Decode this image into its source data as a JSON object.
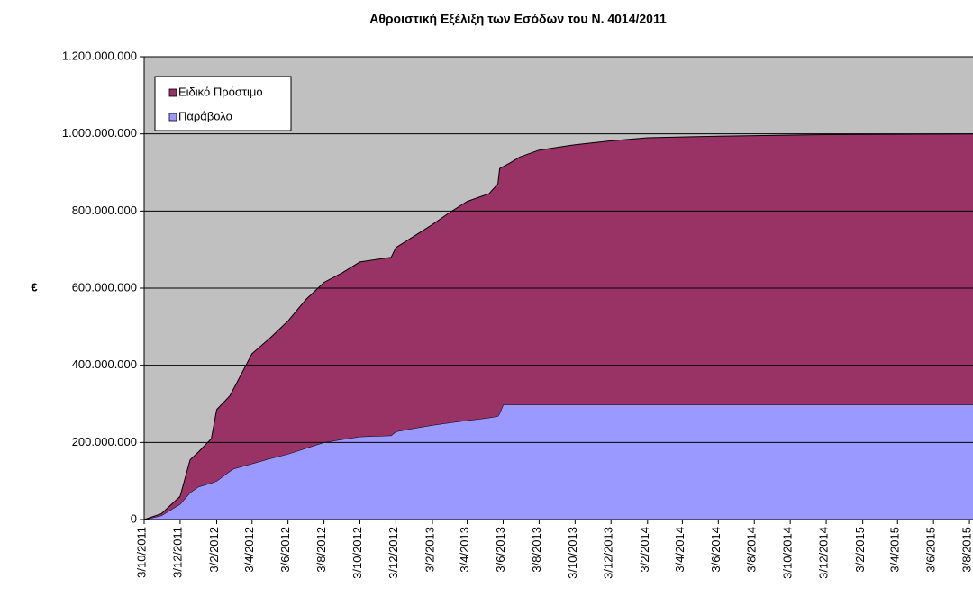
{
  "chart_data": {
    "type": "area",
    "stacked": true,
    "title": "Αθροιστική Εξέλιξη των Εσόδων του Ν. 4014/2011",
    "y_label": "€",
    "background": "#c0c0c0",
    "grid": true,
    "legend": "upper left",
    "x": [
      "2011-10-03",
      "2011-11-01",
      "2011-12-03",
      "2011-12-20",
      "2012-01-03",
      "2012-01-25",
      "2012-02-03",
      "2012-02-25",
      "2012-03-03",
      "2012-04-03",
      "2012-05-03",
      "2012-06-03",
      "2012-07-03",
      "2012-08-03",
      "2012-09-03",
      "2012-10-03",
      "2012-11-25",
      "2012-12-03",
      "2013-01-03",
      "2013-02-03",
      "2013-03-03",
      "2013-04-03",
      "2013-05-10",
      "2013-05-25",
      "2013-05-28",
      "2013-06-03",
      "2013-06-15",
      "2013-07-01",
      "2013-08-03",
      "2013-10-03",
      "2013-12-03",
      "2014-02-03",
      "2014-06-03",
      "2014-12-03",
      "2015-08-09"
    ],
    "series": [
      {
        "name": "Παράβολο",
        "color": "#9999ff",
        "values": [
          0,
          10000000,
          40000000,
          70000000,
          85000000,
          95000000,
          100000000,
          125000000,
          132000000,
          145000000,
          158000000,
          170000000,
          185000000,
          200000000,
          208000000,
          215000000,
          218000000,
          228000000,
          237000000,
          245000000,
          251000000,
          257000000,
          264000000,
          268000000,
          275000000,
          298000000,
          298000000,
          298000000,
          298000000,
          298000000,
          298000000,
          298000000,
          298000000,
          298000000,
          298000000
        ]
      },
      {
        "name": "Ειδικό Πρόστιμο",
        "color": "#993366",
        "values": [
          0,
          5000000,
          20000000,
          85000000,
          90000000,
          115000000,
          185000000,
          195000000,
          208000000,
          285000000,
          312000000,
          345000000,
          385000000,
          415000000,
          432000000,
          453000000,
          462000000,
          477000000,
          498000000,
          520000000,
          544000000,
          568000000,
          581000000,
          602000000,
          635000000,
          617000000,
          627000000,
          642000000,
          660000000,
          674000000,
          684000000,
          692000000,
          696000000,
          700000000,
          702000000
        ]
      }
    ],
    "xlim": [
      "2011-10-03",
      "2015-08-09"
    ],
    "xticks": [
      {
        "value": "2011-10-03",
        "label": "3/10/2011"
      },
      {
        "value": "2011-12-03",
        "label": "3/12/2011"
      },
      {
        "value": "2012-02-03",
        "label": "3/2/2012"
      },
      {
        "value": "2012-04-03",
        "label": "3/4/2012"
      },
      {
        "value": "2012-06-03",
        "label": "3/6/2012"
      },
      {
        "value": "2012-08-03",
        "label": "3/8/2012"
      },
      {
        "value": "2012-10-03",
        "label": "3/10/2012"
      },
      {
        "value": "2012-12-03",
        "label": "3/12/2012"
      },
      {
        "value": "2013-02-03",
        "label": "3/2/2013"
      },
      {
        "value": "2013-04-03",
        "label": "3/4/2013"
      },
      {
        "value": "2013-06-03",
        "label": "3/6/2013"
      },
      {
        "value": "2013-08-03",
        "label": "3/8/2013"
      },
      {
        "value": "2013-10-03",
        "label": "3/10/2013"
      },
      {
        "value": "2013-12-03",
        "label": "3/12/2013"
      },
      {
        "value": "2014-02-03",
        "label": "3/2/2014"
      },
      {
        "value": "2014-04-03",
        "label": "3/4/2014"
      },
      {
        "value": "2014-06-03",
        "label": "3/6/2014"
      },
      {
        "value": "2014-08-03",
        "label": "3/8/2014"
      },
      {
        "value": "2014-10-03",
        "label": "3/10/2014"
      },
      {
        "value": "2014-12-03",
        "label": "3/12/2014"
      },
      {
        "value": "2015-02-03",
        "label": "3/2/2015"
      },
      {
        "value": "2015-04-03",
        "label": "3/4/2015"
      },
      {
        "value": "2015-06-03",
        "label": "3/6/2015"
      },
      {
        "value": "2015-08-03",
        "label": "3/8/2015"
      }
    ],
    "ylim": [
      0,
      1200000000
    ],
    "yticks": [
      0,
      {
        "value": 200000000,
        "label": "200.000.000"
      },
      {
        "value": 400000000,
        "label": "400.000.000"
      },
      {
        "value": 600000000,
        "label": "600.000.000"
      },
      {
        "value": 800000000,
        "label": "800.000.000"
      },
      {
        "value": 1000000000,
        "label": "1.000.000.000"
      },
      {
        "value": 1200000000,
        "label": "1.200.000.000"
      }
    ]
  }
}
